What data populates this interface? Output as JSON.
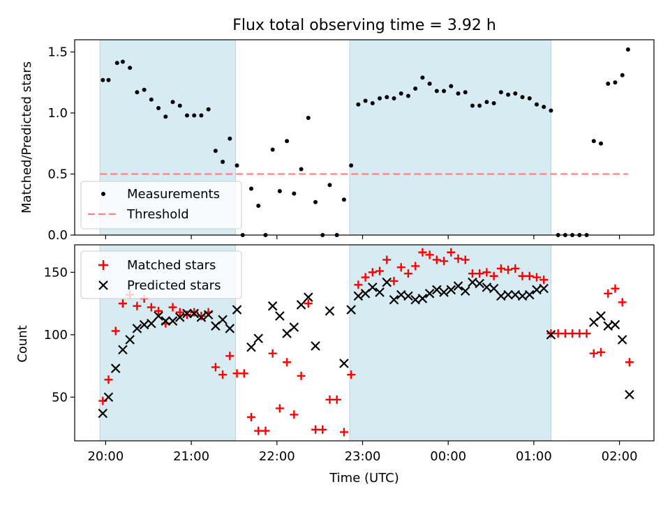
{
  "chart_data": [
    {
      "type": "scatter",
      "title": "Flux total observing time = 3.92 h",
      "ylabel": "Matched/Predicted stars",
      "xlabel": "",
      "x_unit": "hours since 20:00 UTC",
      "ylim": [
        0,
        1.6
      ],
      "yticks": [
        "0.0",
        "0.5",
        "1.0",
        "1.5"
      ],
      "shaded_intervals": [
        [
          "19:56",
          "21:31"
        ],
        [
          "22:51",
          "01:12"
        ]
      ],
      "shade_color": "#add8e6",
      "legend": {
        "position": "lower-left",
        "entries": [
          "Measurements",
          "Threshold"
        ]
      },
      "threshold": {
        "name": "Threshold",
        "y": 0.5,
        "x_range": [
          "19:56",
          "02:06"
        ],
        "color": "#ff8080"
      },
      "series": [
        {
          "name": "Measurements",
          "color": "#000000",
          "points": [
            [
              "19:58",
              1.27
            ],
            [
              "20:02",
              1.27
            ],
            [
              "20:08",
              1.41
            ],
            [
              "20:12",
              1.42
            ],
            [
              "20:17",
              1.37
            ],
            [
              "20:22",
              1.17
            ],
            [
              "20:27",
              1.19
            ],
            [
              "20:32",
              1.11
            ],
            [
              "20:37",
              1.04
            ],
            [
              "20:42",
              0.97
            ],
            [
              "20:47",
              1.09
            ],
            [
              "20:52",
              1.06
            ],
            [
              "20:57",
              0.98
            ],
            [
              "21:02",
              0.98
            ],
            [
              "21:07",
              0.98
            ],
            [
              "21:12",
              1.03
            ],
            [
              "21:17",
              0.69
            ],
            [
              "21:22",
              0.6
            ],
            [
              "21:27",
              0.79
            ],
            [
              "21:32",
              0.57
            ],
            [
              "21:36",
              0.0
            ],
            [
              "21:42",
              0.38
            ],
            [
              "21:47",
              0.24
            ],
            [
              "21:52",
              0.0
            ],
            [
              "21:57",
              0.7
            ],
            [
              "22:02",
              0.36
            ],
            [
              "22:07",
              0.77
            ],
            [
              "22:12",
              0.34
            ],
            [
              "22:17",
              0.54
            ],
            [
              "22:22",
              0.96
            ],
            [
              "22:27",
              0.27
            ],
            [
              "22:32",
              0.0
            ],
            [
              "22:37",
              0.41
            ],
            [
              "22:42",
              0.0
            ],
            [
              "22:47",
              0.29
            ],
            [
              "22:52",
              0.57
            ],
            [
              "22:57",
              1.07
            ],
            [
              "23:02",
              1.1
            ],
            [
              "23:07",
              1.08
            ],
            [
              "23:12",
              1.12
            ],
            [
              "23:17",
              1.13
            ],
            [
              "23:22",
              1.12
            ],
            [
              "23:27",
              1.16
            ],
            [
              "23:32",
              1.14
            ],
            [
              "23:37",
              1.2
            ],
            [
              "23:42",
              1.29
            ],
            [
              "23:47",
              1.24
            ],
            [
              "23:52",
              1.18
            ],
            [
              "23:57",
              1.18
            ],
            [
              "00:02",
              1.22
            ],
            [
              "00:07",
              1.16
            ],
            [
              "00:12",
              1.17
            ],
            [
              "00:17",
              1.06
            ],
            [
              "00:22",
              1.06
            ],
            [
              "00:27",
              1.09
            ],
            [
              "00:32",
              1.08
            ],
            [
              "00:37",
              1.17
            ],
            [
              "00:42",
              1.15
            ],
            [
              "00:47",
              1.16
            ],
            [
              "00:52",
              1.13
            ],
            [
              "00:57",
              1.12
            ],
            [
              "01:02",
              1.07
            ],
            [
              "01:07",
              1.05
            ],
            [
              "01:12",
              1.02
            ],
            [
              "01:17",
              0.0
            ],
            [
              "01:22",
              0.0
            ],
            [
              "01:27",
              0.0
            ],
            [
              "01:32",
              0.0
            ],
            [
              "01:37",
              0.0
            ],
            [
              "01:42",
              0.77
            ],
            [
              "01:47",
              0.75
            ],
            [
              "01:52",
              1.24
            ],
            [
              "01:57",
              1.25
            ],
            [
              "02:02",
              1.31
            ],
            [
              "02:06",
              1.52
            ]
          ]
        }
      ]
    },
    {
      "type": "scatter",
      "title": "",
      "xlabel": "Time (UTC)",
      "ylabel": "Count",
      "x_unit": "hours since 20:00 UTC",
      "ylim": [
        15,
        172
      ],
      "yticks": [
        "50",
        "100",
        "150"
      ],
      "xticks": [
        "20:00",
        "21:00",
        "22:00",
        "23:00",
        "00:00",
        "01:00",
        "02:00"
      ],
      "shaded_intervals": [
        [
          "19:56",
          "21:31"
        ],
        [
          "22:51",
          "01:12"
        ]
      ],
      "shade_color": "#add8e6",
      "legend": {
        "position": "top-left",
        "entries": [
          "Matched stars",
          "Predicted stars"
        ]
      },
      "series": [
        {
          "name": "Matched stars",
          "marker": "+",
          "color": "#ff0000",
          "points": [
            [
              "19:58",
              47
            ],
            [
              "20:02",
              64
            ],
            [
              "20:07",
              103
            ],
            [
              "20:12",
              125
            ],
            [
              "20:17",
              132
            ],
            [
              "20:22",
              123
            ],
            [
              "20:27",
              129
            ],
            [
              "20:32",
              122
            ],
            [
              "20:37",
              119
            ],
            [
              "20:42",
              109
            ],
            [
              "20:47",
              122
            ],
            [
              "20:52",
              118
            ],
            [
              "20:57",
              116
            ],
            [
              "21:02",
              118
            ],
            [
              "21:07",
              115
            ],
            [
              "21:12",
              118
            ],
            [
              "21:17",
              74
            ],
            [
              "21:22",
              68
            ],
            [
              "21:27",
              83
            ],
            [
              "21:32",
              69
            ],
            [
              "21:37",
              69
            ],
            [
              "21:42",
              34
            ],
            [
              "21:47",
              23
            ],
            [
              "21:52",
              23
            ],
            [
              "21:57",
              85
            ],
            [
              "22:02",
              41
            ],
            [
              "22:07",
              78
            ],
            [
              "22:12",
              36
            ],
            [
              "22:17",
              67
            ],
            [
              "22:22",
              125
            ],
            [
              "22:27",
              24
            ],
            [
              "22:32",
              24
            ],
            [
              "22:37",
              48
            ],
            [
              "22:42",
              48
            ],
            [
              "22:47",
              22
            ],
            [
              "22:52",
              68
            ],
            [
              "22:57",
              140
            ],
            [
              "23:02",
              146
            ],
            [
              "23:07",
              150
            ],
            [
              "23:12",
              151
            ],
            [
              "23:17",
              160
            ],
            [
              "23:22",
              143
            ],
            [
              "23:27",
              154
            ],
            [
              "23:32",
              149
            ],
            [
              "23:37",
              155
            ],
            [
              "23:42",
              166
            ],
            [
              "23:47",
              164
            ],
            [
              "23:52",
              160
            ],
            [
              "23:57",
              159
            ],
            [
              "00:02",
              166
            ],
            [
              "00:07",
              161
            ],
            [
              "00:12",
              160
            ],
            [
              "00:17",
              149
            ],
            [
              "00:22",
              149
            ],
            [
              "00:27",
              150
            ],
            [
              "00:32",
              147
            ],
            [
              "00:37",
              153
            ],
            [
              "00:42",
              152
            ],
            [
              "00:47",
              153
            ],
            [
              "00:52",
              147
            ],
            [
              "00:57",
              147
            ],
            [
              "01:02",
              146
            ],
            [
              "01:07",
              144
            ],
            [
              "01:12",
              101
            ],
            [
              "01:17",
              101
            ],
            [
              "01:22",
              101
            ],
            [
              "01:27",
              101
            ],
            [
              "01:32",
              101
            ],
            [
              "01:37",
              101
            ],
            [
              "01:42",
              85
            ],
            [
              "01:47",
              86
            ],
            [
              "01:52",
              133
            ],
            [
              "01:57",
              137
            ],
            [
              "02:02",
              126
            ],
            [
              "02:07",
              78
            ]
          ]
        },
        {
          "name": "Predicted stars",
          "marker": "x",
          "color": "#000000",
          "points": [
            [
              "19:58",
              37
            ],
            [
              "20:02",
              50
            ],
            [
              "20:07",
              73
            ],
            [
              "20:12",
              88
            ],
            [
              "20:17",
              96
            ],
            [
              "20:22",
              105
            ],
            [
              "20:27",
              108
            ],
            [
              "20:32",
              109
            ],
            [
              "20:37",
              115
            ],
            [
              "20:42",
              111
            ],
            [
              "20:47",
              111
            ],
            [
              "20:52",
              114
            ],
            [
              "20:57",
              117
            ],
            [
              "21:02",
              117
            ],
            [
              "21:07",
              114
            ],
            [
              "21:12",
              116
            ],
            [
              "21:17",
              107
            ],
            [
              "21:22",
              112
            ],
            [
              "21:27",
              105
            ],
            [
              "21:32",
              120
            ],
            [
              "21:42",
              90
            ],
            [
              "21:47",
              97
            ],
            [
              "21:57",
              123
            ],
            [
              "22:02",
              115
            ],
            [
              "22:07",
              101
            ],
            [
              "22:12",
              106
            ],
            [
              "22:17",
              124
            ],
            [
              "22:22",
              130
            ],
            [
              "22:27",
              91
            ],
            [
              "22:37",
              119
            ],
            [
              "22:47",
              77
            ],
            [
              "22:52",
              120
            ],
            [
              "22:57",
              131
            ],
            [
              "23:02",
              133
            ],
            [
              "23:07",
              138
            ],
            [
              "23:12",
              134
            ],
            [
              "23:17",
              142
            ],
            [
              "23:22",
              128
            ],
            [
              "23:27",
              132
            ],
            [
              "23:32",
              131
            ],
            [
              "23:37",
              128
            ],
            [
              "23:42",
              129
            ],
            [
              "23:47",
              133
            ],
            [
              "23:52",
              136
            ],
            [
              "23:57",
              134
            ],
            [
              "00:02",
              136
            ],
            [
              "00:07",
              139
            ],
            [
              "00:12",
              135
            ],
            [
              "00:17",
              142
            ],
            [
              "00:22",
              141
            ],
            [
              "00:27",
              138
            ],
            [
              "00:32",
              137
            ],
            [
              "00:37",
              131
            ],
            [
              "00:42",
              132
            ],
            [
              "00:47",
              132
            ],
            [
              "00:52",
              131
            ],
            [
              "00:57",
              132
            ],
            [
              "01:02",
              136
            ],
            [
              "01:07",
              137
            ],
            [
              "01:12",
              100
            ],
            [
              "01:42",
              110
            ],
            [
              "01:47",
              115
            ],
            [
              "01:52",
              107
            ],
            [
              "01:57",
              108
            ],
            [
              "02:02",
              96
            ],
            [
              "02:07",
              52
            ]
          ]
        }
      ]
    }
  ]
}
